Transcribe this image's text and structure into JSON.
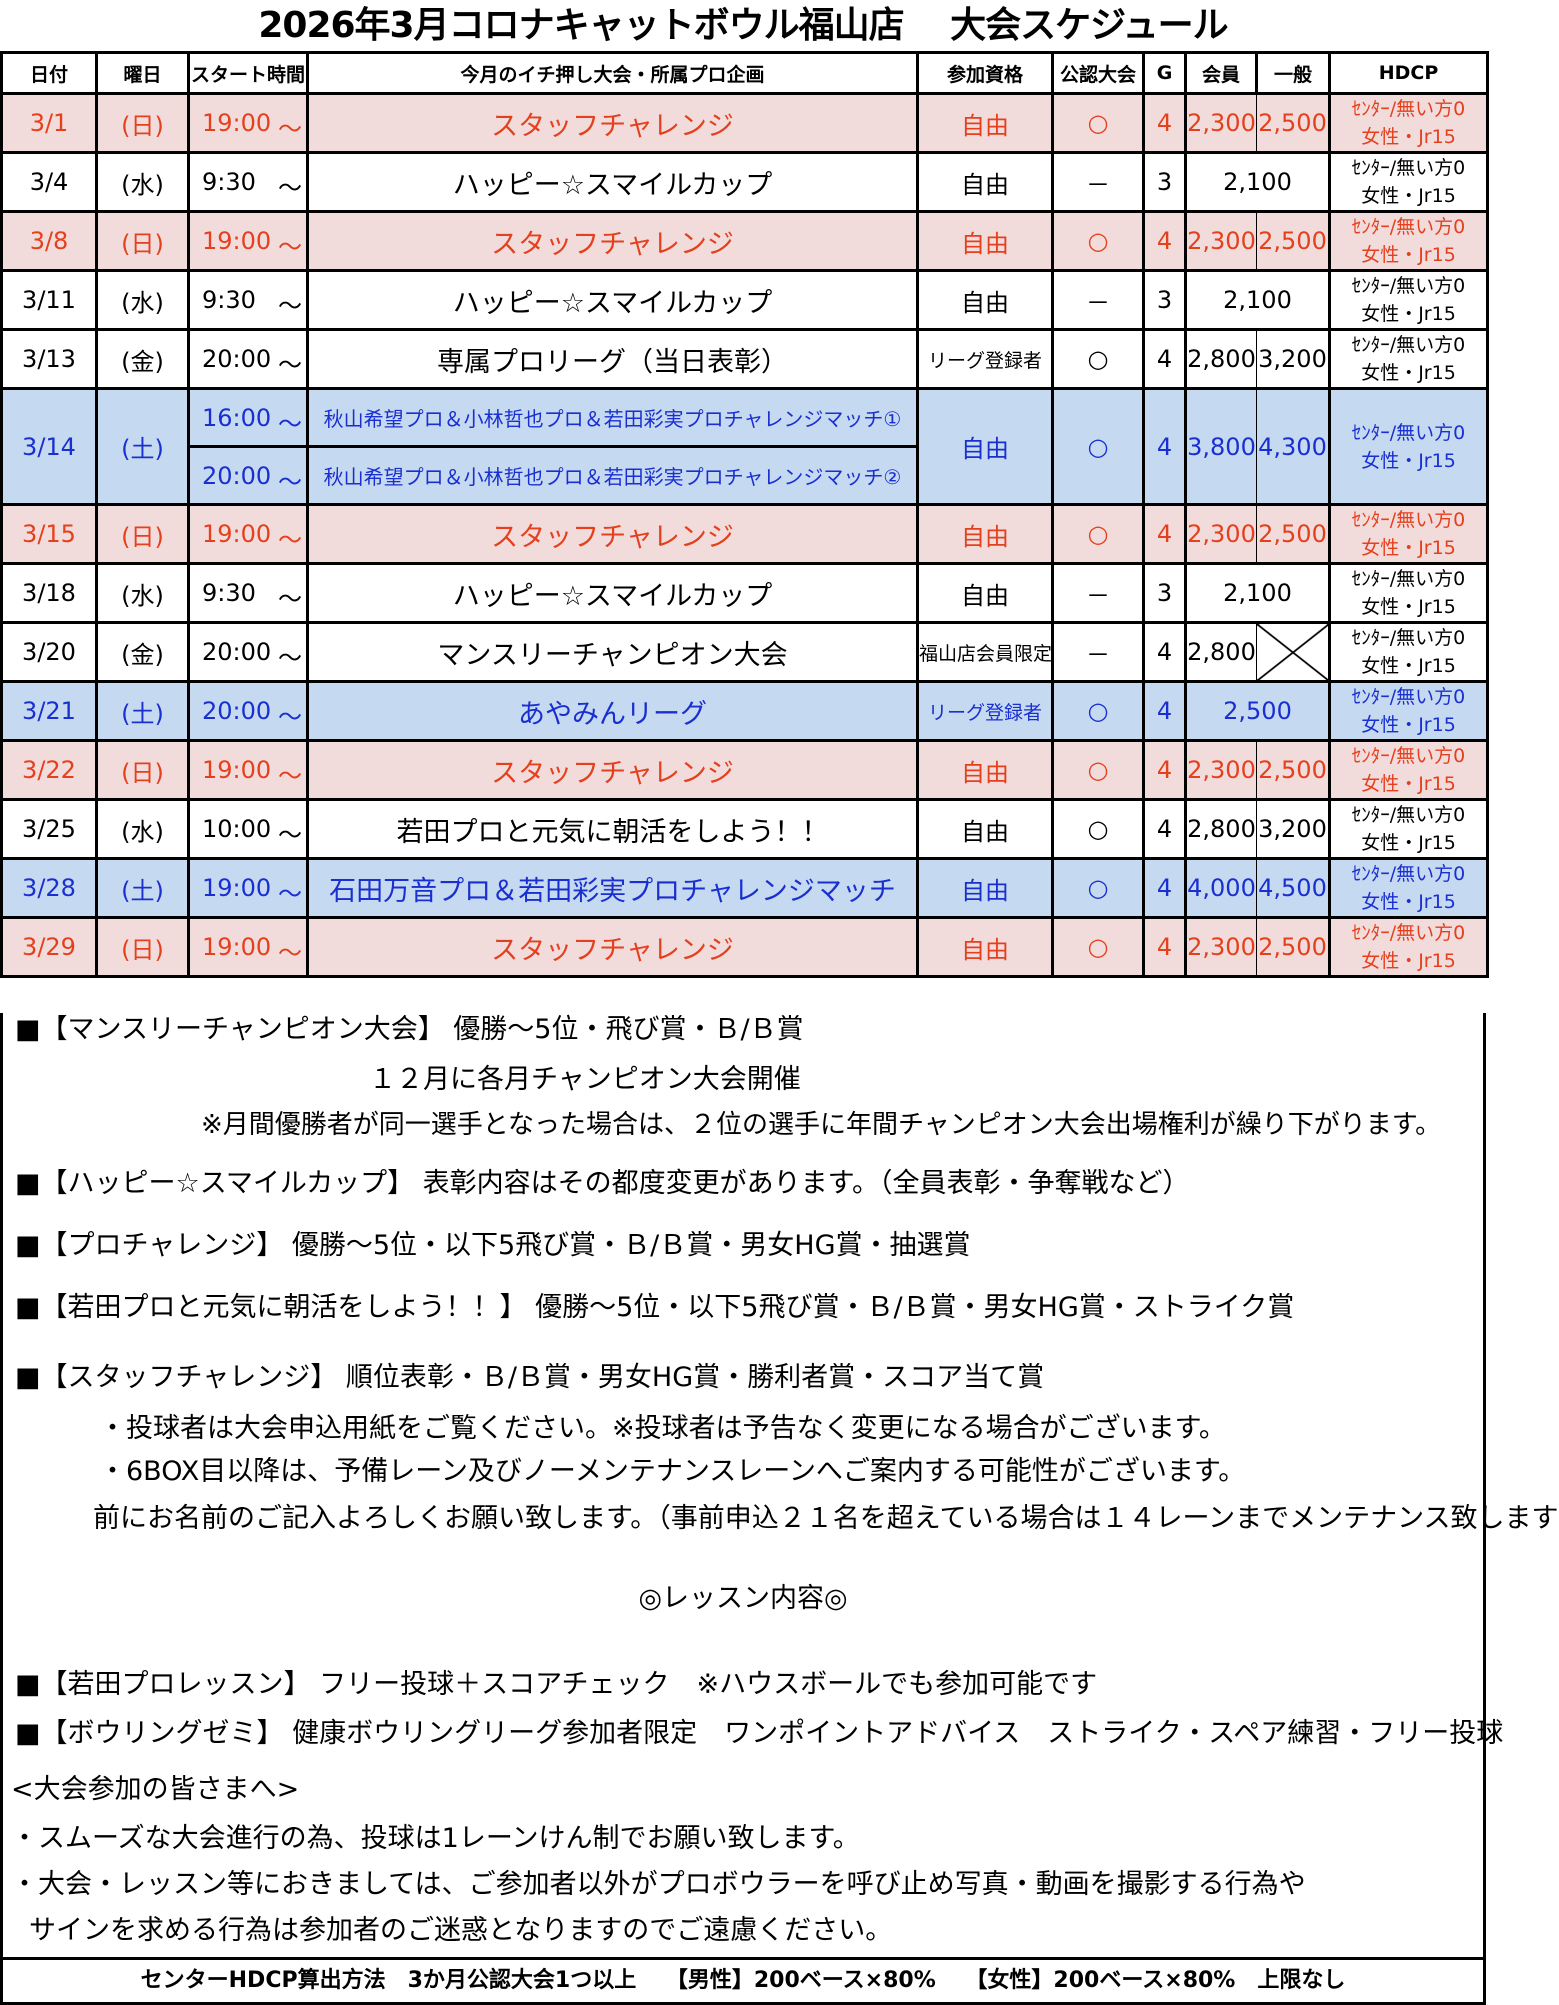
{
  "title": "2026年3月コロナキャットボウル福山店　 大会スケジュール",
  "headers": [
    "日付",
    "曜日",
    "スタート時間",
    "今月のイチ押し大会・所属プロ企画",
    "参加資格",
    "公認大会",
    "G",
    "会員",
    "一般",
    "HDCP"
  ],
  "colors": {
    "red_bg": "#f2dcdb",
    "red_text": "#e5401e",
    "blue_bg": "#c5d9f1",
    "blue_text": "#1a2fd0"
  },
  "rows": [
    {
      "date": "3/1",
      "day": "(日)",
      "times": [
        "19:00"
      ],
      "events": [
        "スタッフチャレンジ"
      ],
      "eligibility": "自由",
      "official": "○",
      "games": "4",
      "member": "2,300",
      "general": "2,500",
      "hdcp": [
        "ｾﾝﾀｰ/無い方0",
        "女性・Jr15"
      ],
      "style": "red"
    },
    {
      "date": "3/4",
      "day": "(水)",
      "times": [
        "9:30"
      ],
      "events": [
        "ハッピー☆スマイルカップ"
      ],
      "eligibility": "自由",
      "official": "－",
      "games": "3",
      "member": "2,100",
      "general": null,
      "hdcp": [
        "ｾﾝﾀｰ/無い方0",
        "女性・Jr15"
      ],
      "style": ""
    },
    {
      "date": "3/8",
      "day": "(日)",
      "times": [
        "19:00"
      ],
      "events": [
        "スタッフチャレンジ"
      ],
      "eligibility": "自由",
      "official": "○",
      "games": "4",
      "member": "2,300",
      "general": "2,500",
      "hdcp": [
        "ｾﾝﾀｰ/無い方0",
        "女性・Jr15"
      ],
      "style": "red"
    },
    {
      "date": "3/11",
      "day": "(水)",
      "times": [
        "9:30"
      ],
      "events": [
        "ハッピー☆スマイルカップ"
      ],
      "eligibility": "自由",
      "official": "－",
      "games": "3",
      "member": "2,100",
      "general": null,
      "hdcp": [
        "ｾﾝﾀｰ/無い方0",
        "女性・Jr15"
      ],
      "style": ""
    },
    {
      "date": "3/13",
      "day": "(金)",
      "times": [
        "20:00"
      ],
      "events": [
        "専属プロリーグ（当日表彰）"
      ],
      "eligibility": "リーグ登録者",
      "official": "○",
      "games": "4",
      "member": "2,800",
      "general": "3,200",
      "hdcp": [
        "ｾﾝﾀｰ/無い方0",
        "女性・Jr15"
      ],
      "style": ""
    },
    {
      "date": "3/14",
      "day": "(土)",
      "times": [
        "16:00",
        "20:00"
      ],
      "events": [
        "秋山希望プロ＆小林哲也プロ＆若田彩実プロチャレンジマッチ①",
        "秋山希望プロ＆小林哲也プロ＆若田彩実プロチャレンジマッチ②"
      ],
      "eligibility": "自由",
      "official": "○",
      "games": "4",
      "member": "3,800",
      "general": "4,300",
      "hdcp": [
        "ｾﾝﾀｰ/無い方0",
        "女性・Jr15"
      ],
      "style": "blue"
    },
    {
      "date": "3/15",
      "day": "(日)",
      "times": [
        "19:00"
      ],
      "events": [
        "スタッフチャレンジ"
      ],
      "eligibility": "自由",
      "official": "○",
      "games": "4",
      "member": "2,300",
      "general": "2,500",
      "hdcp": [
        "ｾﾝﾀｰ/無い方0",
        "女性・Jr15"
      ],
      "style": "red"
    },
    {
      "date": "3/18",
      "day": "(水)",
      "times": [
        "9:30"
      ],
      "events": [
        "ハッピー☆スマイルカップ"
      ],
      "eligibility": "自由",
      "official": "－",
      "games": "3",
      "member": "2,100",
      "general": null,
      "hdcp": [
        "ｾﾝﾀｰ/無い方0",
        "女性・Jr15"
      ],
      "style": ""
    },
    {
      "date": "3/20",
      "day": "(金)",
      "times": [
        "20:00"
      ],
      "events": [
        "マンスリーチャンピオン大会"
      ],
      "eligibility": "福山店会員限定",
      "official": "－",
      "games": "4",
      "member": "2,800",
      "general": "cross",
      "hdcp": [
        "ｾﾝﾀｰ/無い方0",
        "女性・Jr15"
      ],
      "style": ""
    },
    {
      "date": "3/21",
      "day": "(土)",
      "times": [
        "20:00"
      ],
      "events": [
        "あやみんリーグ"
      ],
      "eligibility": "リーグ登録者",
      "official": "○",
      "games": "4",
      "member": "2,500",
      "general": null,
      "hdcp": [
        "ｾﾝﾀｰ/無い方0",
        "女性・Jr15"
      ],
      "style": "blue"
    },
    {
      "date": "3/22",
      "day": "(日)",
      "times": [
        "19:00"
      ],
      "events": [
        "スタッフチャレンジ"
      ],
      "eligibility": "自由",
      "official": "○",
      "games": "4",
      "member": "2,300",
      "general": "2,500",
      "hdcp": [
        "ｾﾝﾀｰ/無い方0",
        "女性・Jr15"
      ],
      "style": "red"
    },
    {
      "date": "3/25",
      "day": "(水)",
      "times": [
        "10:00"
      ],
      "events": [
        "若田プロと元気に朝活をしよう！！"
      ],
      "eligibility": "自由",
      "official": "○",
      "games": "4",
      "member": "2,800",
      "general": "3,200",
      "hdcp": [
        "ｾﾝﾀｰ/無い方0",
        "女性・Jr15"
      ],
      "style": ""
    },
    {
      "date": "3/28",
      "day": "(土)",
      "times": [
        "19:00"
      ],
      "events": [
        "石田万音プロ＆若田彩実プロチャレンジマッチ"
      ],
      "eligibility": "自由",
      "official": "○",
      "games": "4",
      "member": "4,000",
      "general": "4,500",
      "hdcp": [
        "ｾﾝﾀｰ/無い方0",
        "女性・Jr15"
      ],
      "style": "blue"
    },
    {
      "date": "3/29",
      "day": "(日)",
      "times": [
        "19:00"
      ],
      "events": [
        "スタッフチャレンジ"
      ],
      "eligibility": "自由",
      "official": "○",
      "games": "4",
      "member": "2,300",
      "general": "2,500",
      "hdcp": [
        "ｾﾝﾀｰ/無い方0",
        "女性・Jr15"
      ],
      "style": "red"
    }
  ],
  "time_suffix": "～",
  "notes": [
    "■【マンスリーチャンピオン大会】 優勝～5位・飛び賞・Ｂ/Ｂ賞",
    "１２月に各月チャンピオン大会開催",
    "※月間優勝者が同一選手となった場合は、２位の選手に年間チャンピオン大会出場権利が繰り下がります。",
    "■【ハッピー☆スマイルカップ】 表彰内容はその都度変更があります。（全員表彰・争奪戦など）",
    "■【プロチャレンジ】 優勝～5位・以下5飛び賞・Ｂ/Ｂ賞・男女HG賞・抽選賞",
    "■【若田プロと元気に朝活をしよう！！】 優勝～5位・以下5飛び賞・Ｂ/Ｂ賞・男女HG賞・ストライク賞",
    "■【スタッフチャレンジ】 順位表彰・Ｂ/Ｂ賞・男女HG賞・勝利者賞・スコア当て賞",
    "・投球者は大会申込用紙をご覧ください。※投球者は予告なく変更になる場合がございます。",
    "・6BOX目以降は、予備レーン及びノーメンテナンスレーンへご案内する可能性がございます。",
    "前にお名前のご記入よろしくお願い致します。（事前申込２１名を超えている場合は１４レーンまでメンテナンス致します",
    "◎レッスン内容◎",
    "■【若田プロレッスン】 フリー投球＋スコアチェック　※ハウスボールでも参加可能です",
    "■【ボウリングゼミ】 健康ボウリングリーグ参加者限定　ワンポイントアドバイス　ストライク・スペア練習・フリー投球",
    "<大会参加の皆さまへ>",
    "・スムーズな大会進行の為、投球は1レーンけん制でお願い致します。",
    "・大会・レッスン等におきましては、ご参加者以外がプロボウラーを呼び止め写真・動画を撮影する行為や",
    "サインを求める行為は参加者のご迷惑となりますのでご遠慮ください。"
  ],
  "footer": "センターHDCP算出方法　3か月公認大会1つ以上　 【男性】200ベース×80%　 【女性】200ベース×80%　上限なし"
}
